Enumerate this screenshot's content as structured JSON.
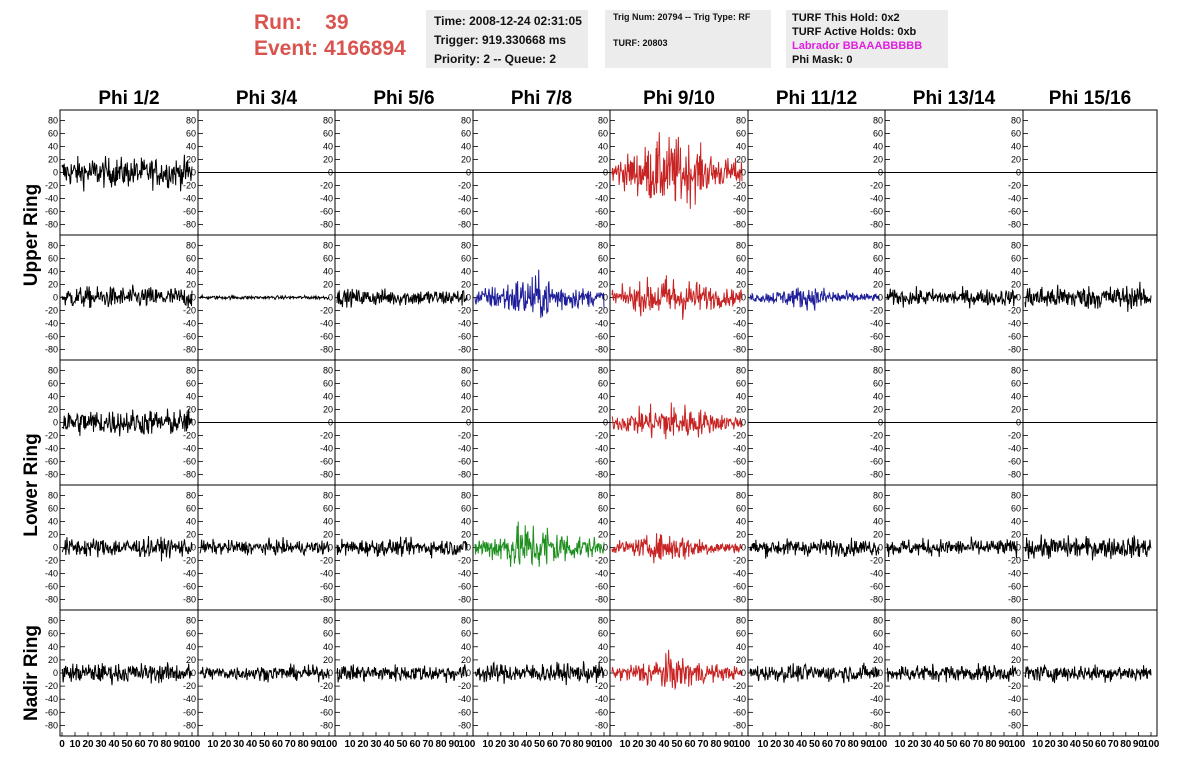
{
  "header": {
    "run_label": "Run:",
    "run_value": "39",
    "event_label": "Event:",
    "event_value": "4166894",
    "time": "Time: 2008-12-24 02:31:05",
    "trigger": "Trigger: 919.330668 ms",
    "priority": "Priority: 2 -- Queue: 2",
    "trig_num": "Trig Num: 20794 -- Trig Type: RF",
    "turf": "TURF: 20803",
    "turf_hold": "TURF This Hold: 0x2",
    "turf_active": "TURF Active Holds: 0xb",
    "labrador": "Labrador BBAAABBBBB",
    "phi_mask": "Phi Mask: 0"
  },
  "columns": [
    "Phi 1/2",
    "Phi 3/4",
    "Phi 5/6",
    "Phi 7/8",
    "Phi 9/10",
    "Phi 11/12",
    "Phi 13/14",
    "Phi 15/16"
  ],
  "ring_labels": [
    "Upper Ring",
    "Lower Ring",
    "Nadir Ring"
  ],
  "colors": {
    "black": "#000000",
    "red": "#c82323",
    "blue": "#1e1e9a",
    "green": "#1f8f1f",
    "run_text": "#d9534f",
    "labrador": "#e020e0"
  },
  "chart_data": {
    "type": "line",
    "ylim": [
      -90,
      90
    ],
    "xlim": [
      0,
      100
    ],
    "y_ticks": [
      80,
      60,
      40,
      20,
      0,
      -20,
      -40,
      -60,
      -80
    ],
    "x_tick_labels": [
      "0",
      "10",
      "20",
      "30",
      "40",
      "50",
      "60",
      "70",
      "80",
      "90",
      "100"
    ],
    "rows": [
      [
        "m:25",
        "f",
        "f",
        "f",
        "r:45",
        "f",
        "f",
        "f"
      ],
      [
        "m:18",
        "m:3",
        "m:14",
        "b:28",
        "r:28",
        "b:14",
        "m:14",
        "m:20"
      ],
      [
        "m:22",
        "f",
        "f",
        "f",
        "r:25",
        "f",
        "f",
        "f"
      ],
      [
        "m:16",
        "m:12",
        "m:14",
        "g:32",
        "r:18",
        "m:14",
        "m:14",
        "m:18"
      ],
      [
        "m:16",
        "m:12",
        "m:14",
        "m:16",
        "r:22",
        "m:14",
        "m:14",
        "m:14"
      ]
    ]
  }
}
